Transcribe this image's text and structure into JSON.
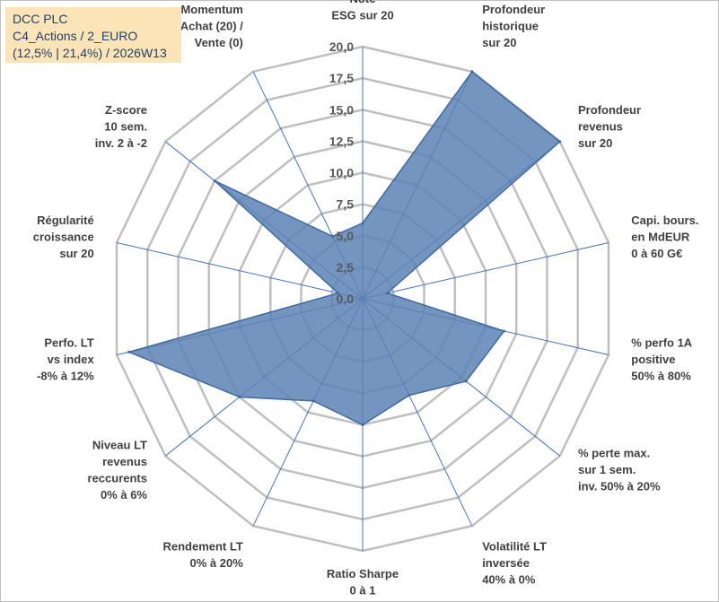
{
  "title_box": {
    "line1": "DCC PLC",
    "line2": "C4_Actions / 2_EURO",
    "line3": "(12,5% | 21,4%) / 2026W13"
  },
  "chart_data": {
    "type": "radar",
    "axes": [
      {
        "label": [
          "Note",
          "ESG sur 20"
        ],
        "value": 6.0
      },
      {
        "label": [
          "Profondeur",
          "historique",
          "sur 20"
        ],
        "value": 20.0
      },
      {
        "label": [
          "Profondeur",
          "revenus",
          "sur 20"
        ],
        "value": 20.0
      },
      {
        "label": [
          "Capi. bours.",
          "en MdEUR",
          "0 à 60 G€"
        ],
        "value": 2.0
      },
      {
        "label": [
          "% perfo 1A",
          "positive",
          "50% à 80%"
        ],
        "value": 11.5
      },
      {
        "label": [
          "% perte max.",
          "sur 1 sem.",
          "inv. 50% à 20%"
        ],
        "value": 10.5
      },
      {
        "label": [
          "Volatilité LT",
          "inversée",
          "40% à 0%"
        ],
        "value": 8.5
      },
      {
        "label": [
          "Ratio Sharpe",
          "0 à 1"
        ],
        "value": 10.0
      },
      {
        "label": [
          "Rendement LT",
          "0% à 20%"
        ],
        "value": 9.0
      },
      {
        "label": [
          "Niveau LT",
          "revenus",
          "reccurents",
          "0% à 6%"
        ],
        "value": 12.5
      },
      {
        "label": [
          "Perfo. LT",
          "vs index",
          "-8% à 12%"
        ],
        "value": 19.0
      },
      {
        "label": [
          "Régularité",
          "croissance",
          "sur 20"
        ],
        "value": 2.0
      },
      {
        "label": [
          "Z-score",
          "10 sem.",
          "inv. 2 à -2"
        ],
        "value": 15.0
      },
      {
        "label": [
          "Momentum",
          "Achat (20) /",
          "Vente (0)"
        ],
        "value": 5.5
      }
    ],
    "rmin": 0,
    "rmax": 20,
    "ticks": [
      "0,0",
      "2,5",
      "5,0",
      "7,5",
      "10,0",
      "12,5",
      "15,0",
      "17,5",
      "20,0"
    ],
    "grid": true,
    "colors": {
      "fill": "#5b82b4",
      "stroke": "#3e6aa6",
      "grid": "#bfbfbf",
      "spoke": "#4472c4"
    }
  }
}
